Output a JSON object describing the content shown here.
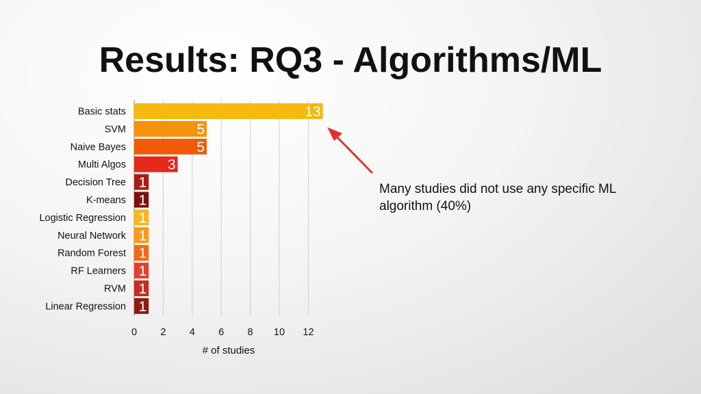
{
  "slide": {
    "title": "Results: RQ3 - Algorithms/ML",
    "annotation": "Many studies did not use any specific ML algorithm (40%)"
  },
  "chart_data": {
    "type": "bar",
    "orientation": "horizontal",
    "title": "",
    "xlabel": "# of studies",
    "ylabel": "",
    "xlim": [
      0,
      13
    ],
    "xticks": [
      0,
      2,
      4,
      6,
      8,
      10,
      12
    ],
    "grid": true,
    "categories": [
      "Basic stats",
      "SVM",
      "Naive Bayes",
      "Multi Algos",
      "Decision Tree",
      "K-means",
      "Logistic Regression",
      "Neural Network",
      "Random Forest",
      "RF Learners",
      "RVM",
      "Linear Regression"
    ],
    "values": [
      13,
      5,
      5,
      3,
      1,
      1,
      1,
      1,
      1,
      1,
      1,
      1
    ],
    "colors": [
      "#f5b90f",
      "#f7920c",
      "#f25a0a",
      "#e5291a",
      "#a81c14",
      "#7d0f0c",
      "#f7b81c",
      "#f89a18",
      "#f26a16",
      "#e4402e",
      "#c52c22",
      "#8e1a14"
    ],
    "label_color": "#ffffff",
    "arrow_color": "#e0342a"
  }
}
